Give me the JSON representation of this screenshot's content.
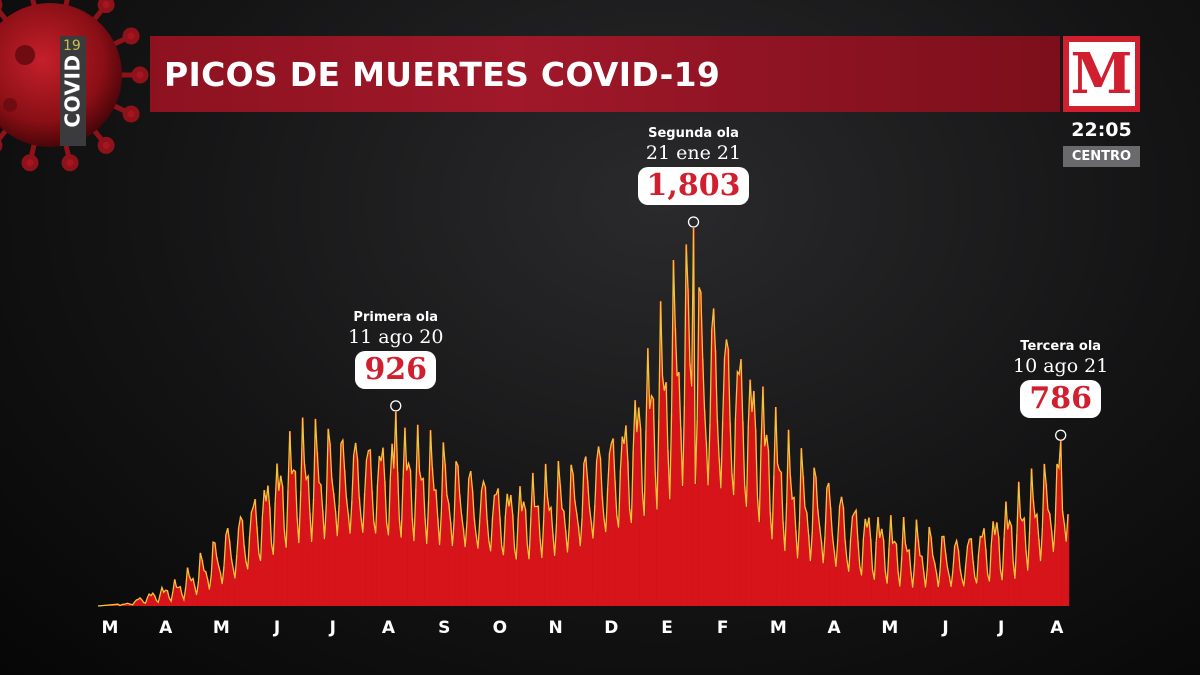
{
  "header": {
    "title": "PICOS DE MUERTES COVID-19",
    "covid_tag": "COVID",
    "covid_num": "19",
    "logo": "M",
    "time": "22:05",
    "zone": "CENTRO"
  },
  "colors": {
    "bar": "#d6141a",
    "line": "#f2c43a",
    "brand": "#d01f2e",
    "title_bar": "#9a1626"
  },
  "chart_data": {
    "type": "area",
    "title": "PICOS DE MUERTES COVID-19",
    "xlabel": "",
    "ylabel": "",
    "ylim": [
      0,
      1850
    ],
    "grid": false,
    "x_start": "2020-03-01",
    "x_end": "2021-08-14",
    "months": [
      "M",
      "A",
      "M",
      "J",
      "J",
      "A",
      "S",
      "O",
      "N",
      "D",
      "E",
      "F",
      "M",
      "A",
      "M",
      "J",
      "J",
      "A"
    ],
    "monthly_peaks": [
      12,
      150,
      480,
      910,
      880,
      926,
      740,
      640,
      720,
      1050,
      1803,
      1420,
      800,
      590,
      430,
      360,
      600,
      786
    ],
    "monthly_troughs": [
      0,
      10,
      60,
      210,
      230,
      230,
      190,
      150,
      180,
      260,
      380,
      320,
      150,
      70,
      40,
      30,
      60,
      230
    ],
    "annotations": [
      {
        "label": "Primera ola",
        "date": "11 ago 20",
        "value": "926",
        "x": "2020-08-11",
        "y": 926
      },
      {
        "label": "Segunda ola",
        "date": "21 ene 21",
        "value": "1,803",
        "x": "2021-01-21",
        "y": 1803
      },
      {
        "label": "Tercera ola",
        "date": "10 ago 21",
        "value": "786",
        "x": "2021-08-10",
        "y": 786
      }
    ]
  }
}
